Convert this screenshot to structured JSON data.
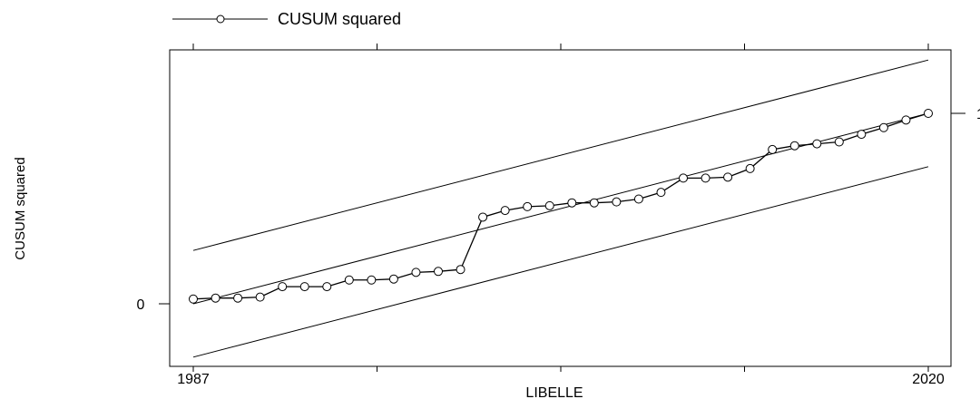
{
  "chart_data": {
    "type": "line",
    "title": "",
    "xlabel": "LIBELLE",
    "ylabel": "CUSUM squared",
    "x_tick_labels": [
      {
        "x": 1987,
        "label": "1987"
      },
      {
        "x": 2020,
        "label": "2020"
      }
    ],
    "x_ticks_unlabeled": [
      1995.25,
      2003.5,
      2011.75
    ],
    "x_ticks_top": [
      1987,
      1995.25,
      2003.5,
      2011.75,
      2020
    ],
    "y_tick_labels": [
      {
        "y": 0,
        "label": "0",
        "side": "left"
      },
      {
        "y": 1,
        "label": "1",
        "side": "right"
      }
    ],
    "xlim": [
      1986,
      2021
    ],
    "ylim": [
      -0.34,
      1.35
    ],
    "legend": {
      "position": "top-left",
      "entries": [
        "CUSUM squared"
      ]
    },
    "series": [
      {
        "name": "CUSUM squared",
        "marker": "open-circle",
        "x": [
          1987,
          1988,
          1989,
          1990,
          1991,
          1992,
          1993,
          1994,
          1995,
          1996,
          1997,
          1998,
          1999,
          2000,
          2001,
          2002,
          2003,
          2004,
          2005,
          2006,
          2007,
          2008,
          2009,
          2010,
          2011,
          2012,
          2013,
          2014,
          2015,
          2016,
          2017,
          2018,
          2019,
          2020
        ],
        "values": [
          0.025,
          0.03,
          0.03,
          0.035,
          0.09,
          0.09,
          0.09,
          0.125,
          0.125,
          0.13,
          0.165,
          0.17,
          0.18,
          0.455,
          0.49,
          0.51,
          0.515,
          0.53,
          0.53,
          0.535,
          0.55,
          0.585,
          0.66,
          0.66,
          0.665,
          0.71,
          0.81,
          0.83,
          0.84,
          0.85,
          0.89,
          0.925,
          0.965,
          1.0
        ]
      }
    ],
    "reference_lines": [
      {
        "role": "expected",
        "x": [
          1987,
          2020
        ],
        "values": [
          0.0,
          1.0
        ]
      },
      {
        "role": "upper-bound",
        "x": [
          1987,
          2020
        ],
        "values": [
          0.28,
          1.28
        ]
      },
      {
        "role": "lower-bound",
        "x": [
          1987,
          2020
        ],
        "values": [
          -0.28,
          0.72
        ]
      }
    ],
    "grid": false
  }
}
